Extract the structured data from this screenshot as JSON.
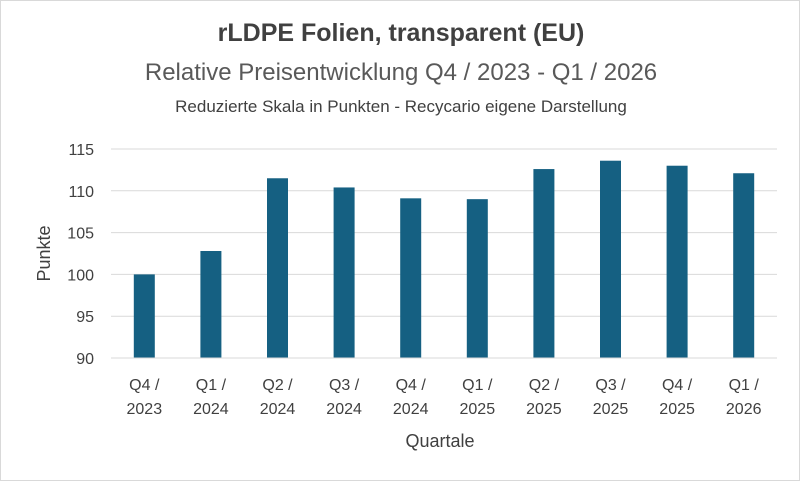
{
  "chart_data": {
    "type": "bar",
    "title": "rLDPE Folien, transparent (EU)",
    "subtitle": "Relative Preisentwicklung Q4 / 2023 - Q1 / 2026",
    "note": "Reduzierte Skala in Punkten - Recycario eigene Darstellung",
    "xlabel": "Quartale",
    "ylabel": "Punkte",
    "ylim": [
      90,
      115
    ],
    "yticks": [
      90,
      95,
      100,
      105,
      110,
      115
    ],
    "categories": [
      [
        "Q4 /",
        "2023"
      ],
      [
        "Q1 /",
        "2024"
      ],
      [
        "Q2 /",
        "2024"
      ],
      [
        "Q3 /",
        "2024"
      ],
      [
        "Q4 /",
        "2024"
      ],
      [
        "Q1 /",
        "2025"
      ],
      [
        "Q2 /",
        "2025"
      ],
      [
        "Q3 /",
        "2025"
      ],
      [
        "Q4 /",
        "2025"
      ],
      [
        "Q1 /",
        "2026"
      ]
    ],
    "values": [
      100.0,
      102.8,
      111.5,
      110.4,
      109.1,
      109.0,
      112.6,
      113.6,
      113.0,
      112.1
    ],
    "bar_color": "#156082",
    "grid": true
  }
}
